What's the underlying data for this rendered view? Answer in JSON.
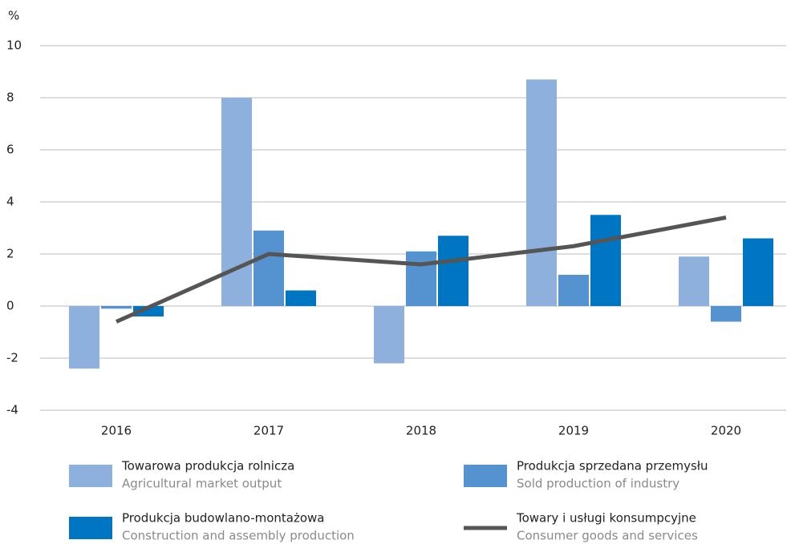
{
  "chart_data": {
    "type": "bar_line",
    "ylabel": "%",
    "categories": [
      "2016",
      "2017",
      "2018",
      "2019",
      "2020"
    ],
    "series": [
      {
        "name": "Towarowa produkcja rolnicza",
        "name_en": "Agricultural market output",
        "type": "bar",
        "color": "#8eb0dc",
        "values": [
          -2.4,
          8.0,
          -2.2,
          8.7,
          1.9
        ]
      },
      {
        "name": "Produkcja sprzedana przemysłu",
        "name_en": "Sold production of industry",
        "type": "bar",
        "color": "#5592d0",
        "values": [
          -0.1,
          2.9,
          2.1,
          1.2,
          -0.6
        ]
      },
      {
        "name": "Produkcja budowlano-montażowa",
        "name_en": "Construction and assembly production",
        "type": "bar",
        "color": "#0075c2",
        "values": [
          -0.4,
          0.6,
          2.7,
          3.5,
          2.6
        ]
      },
      {
        "name": "Towary i usługi konsumpcyjne",
        "name_en": "Consumer goods and services",
        "type": "line",
        "color": "#555555",
        "values": [
          -0.6,
          2.0,
          1.6,
          2.3,
          3.4
        ]
      }
    ],
    "ylim": [
      -4,
      10
    ],
    "yticks": [
      -4,
      -2,
      0,
      2,
      4,
      6,
      8,
      10
    ],
    "grid": true
  }
}
